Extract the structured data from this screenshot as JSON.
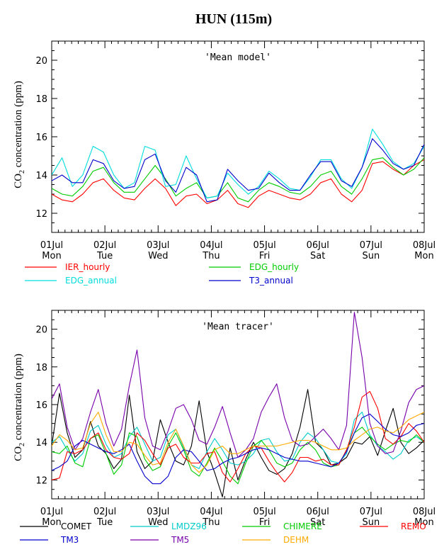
{
  "title": "HUN (115m)",
  "ylabel_prefix": "CO",
  "ylabel_sub": "2",
  "ylabel_suffix": " concentration (ppm)",
  "chart_data": [
    {
      "type": "line",
      "panel_title": "'Mean model'",
      "ylim": [
        11,
        21
      ],
      "yticks": [
        12,
        14,
        16,
        18,
        20
      ],
      "xlim": [
        0,
        168
      ],
      "x_units": "hours from 01 Jul 00:00",
      "xticks": [
        {
          "day": "01Jul",
          "wd": "Mon"
        },
        {
          "day": "02Jul",
          "wd": "Tue"
        },
        {
          "day": "03Jul",
          "wd": "Wed"
        },
        {
          "day": "04Jul",
          "wd": "Thu"
        },
        {
          "day": "05Jul",
          "wd": "Fri"
        },
        {
          "day": "06Jul",
          "wd": "Sat"
        },
        {
          "day": "07Jul",
          "wd": "Sun"
        },
        {
          "day": "08Jul",
          "wd": "Mon"
        }
      ],
      "series": [
        {
          "name": "IER_hourly",
          "color": "#ff0000",
          "values": [
            13.0,
            12.7,
            12.6,
            13.0,
            13.6,
            13.8,
            13.2,
            12.8,
            12.7,
            13.3,
            13.8,
            13.3,
            12.4,
            12.9,
            13.0,
            12.5,
            12.7,
            13.2,
            12.5,
            12.3,
            12.9,
            13.2,
            13.0,
            12.8,
            12.7,
            13.0,
            13.6,
            13.8,
            13.0,
            12.6,
            13.2,
            14.6,
            14.7,
            14.3,
            14.0,
            14.5,
            14.8
          ]
        },
        {
          "name": "EDG_hourly",
          "color": "#00cc00",
          "values": [
            13.3,
            13.0,
            12.9,
            13.4,
            14.2,
            14.4,
            13.6,
            13.1,
            13.1,
            13.8,
            14.5,
            13.8,
            12.9,
            13.3,
            13.6,
            12.8,
            12.9,
            13.6,
            12.8,
            12.6,
            13.2,
            13.6,
            13.4,
            13.1,
            13.0,
            13.4,
            14.0,
            14.2,
            13.4,
            13.0,
            13.8,
            14.8,
            14.9,
            14.4,
            14.0,
            14.3,
            14.9
          ]
        },
        {
          "name": "EDG_annual",
          "color": "#00dddd",
          "values": [
            14.0,
            14.9,
            13.4,
            14.0,
            15.5,
            15.2,
            14.0,
            13.3,
            13.6,
            15.5,
            15.3,
            13.4,
            13.5,
            15.0,
            13.8,
            12.8,
            12.9,
            14.1,
            13.5,
            13.0,
            13.4,
            14.2,
            13.8,
            13.3,
            13.2,
            13.9,
            14.8,
            14.8,
            13.8,
            13.3,
            14.4,
            16.4,
            15.6,
            14.7,
            14.3,
            14.6,
            15.5
          ]
        },
        {
          "name": "T3_annual",
          "color": "#0000cc",
          "values": [
            13.7,
            14.0,
            13.6,
            13.6,
            14.8,
            14.6,
            13.7,
            13.3,
            13.4,
            14.8,
            15.1,
            13.7,
            13.1,
            14.4,
            14.0,
            12.6,
            12.7,
            14.3,
            13.7,
            13.2,
            13.3,
            14.1,
            13.6,
            13.2,
            13.2,
            14.0,
            14.7,
            14.7,
            13.7,
            13.4,
            14.4,
            15.9,
            15.3,
            14.6,
            14.3,
            14.5,
            15.6
          ]
        }
      ]
    },
    {
      "type": "line",
      "panel_title": "'Mean tracer'",
      "ylim": [
        11,
        21
      ],
      "yticks": [
        12,
        14,
        16,
        18,
        20
      ],
      "xlim": [
        0,
        168
      ],
      "x_units": "hours from 01 Jul 00:00",
      "xticks": [
        {
          "day": "01Jul",
          "wd": "Mon"
        },
        {
          "day": "02Jul",
          "wd": "Tue"
        },
        {
          "day": "03Jul",
          "wd": "Wed"
        },
        {
          "day": "04Jul",
          "wd": "Thu"
        },
        {
          "day": "05Jul",
          "wd": "Fri"
        },
        {
          "day": "06Jul",
          "wd": "Sat"
        },
        {
          "day": "07Jul",
          "wd": "Sun"
        },
        {
          "day": "08Jul",
          "wd": "Mon"
        }
      ],
      "series": [
        {
          "name": "COMET",
          "color": "#000000",
          "values": [
            13.8,
            16.6,
            14.5,
            13.2,
            13.6,
            15.1,
            13.8,
            13.4,
            12.6,
            13.1,
            16.5,
            13.5,
            12.6,
            13.0,
            15.2,
            14.0,
            13.0,
            12.8,
            13.8,
            16.2,
            13.5,
            12.4,
            11.1,
            13.7,
            12.0,
            13.1,
            14.0,
            13.2,
            12.5,
            12.3,
            12.6,
            13.4,
            14.8,
            16.8,
            14.0,
            13.6,
            12.8,
            12.9,
            13.2,
            14.0,
            13.9,
            14.3,
            13.3,
            14.6,
            15.8,
            14.0,
            13.4,
            13.7,
            14.1
          ]
        },
        {
          "name": "LMDZ96",
          "color": "#00cccc",
          "values": [
            14.0,
            14.3,
            13.6,
            13.0,
            13.4,
            14.6,
            14.9,
            13.9,
            13.2,
            13.4,
            14.3,
            14.8,
            13.9,
            13.0,
            13.2,
            14.4,
            14.7,
            13.7,
            12.8,
            12.6,
            13.5,
            14.2,
            13.6,
            12.9,
            12.8,
            13.0,
            13.4,
            14.1,
            14.2,
            13.5,
            13.0,
            13.1,
            14.0,
            14.5,
            14.2,
            13.6,
            13.0,
            12.9,
            13.4,
            15.2,
            15.6,
            14.4,
            13.8,
            13.5,
            13.1,
            13.4,
            14.1,
            14.3,
            14.0
          ]
        },
        {
          "name": "CHIMERE",
          "color": "#00cc00",
          "values": [
            13.5,
            13.4,
            13.8,
            12.9,
            12.7,
            14.2,
            14.4,
            13.4,
            12.3,
            12.8,
            14.5,
            14.3,
            13.1,
            12.5,
            12.7,
            13.8,
            14.5,
            13.6,
            12.5,
            12.2,
            12.9,
            13.7,
            13.0,
            12.2,
            11.8,
            12.9,
            13.8,
            14.1,
            13.6,
            12.9,
            12.7,
            12.9,
            13.6,
            14.0,
            13.6,
            12.9,
            12.7,
            12.8,
            13.6,
            14.5,
            14.8,
            14.3,
            13.9,
            13.6,
            13.9,
            14.1,
            14.0,
            14.4,
            14.0
          ]
        },
        {
          "name": "REMO",
          "color": "#ff0000",
          "values": [
            12.0,
            12.1,
            13.5,
            13.4,
            13.6,
            14.2,
            14.5,
            13.6,
            13.2,
            13.1,
            13.4,
            14.5,
            14.1,
            13.4,
            12.8,
            13.7,
            13.9,
            13.2,
            12.9,
            12.9,
            13.4,
            13.5,
            12.4,
            11.9,
            12.6,
            13.4,
            13.8,
            13.7,
            13.0,
            12.4,
            11.9,
            12.4,
            13.2,
            13.2,
            13.0,
            13.1,
            12.8,
            12.8,
            13.6,
            14.8,
            16.4,
            16.7,
            15.8,
            14.2,
            13.9,
            14.3,
            15.0,
            14.6,
            14.0
          ]
        },
        {
          "name": "TM3",
          "color": "#0000cc",
          "values": [
            12.5,
            12.7,
            13.0,
            13.8,
            14.1,
            13.9,
            13.7,
            13.5,
            13.4,
            13.6,
            13.9,
            13.0,
            12.2,
            11.8,
            11.8,
            12.2,
            13.2,
            13.6,
            13.5,
            13.0,
            12.5,
            12.6,
            12.9,
            13.1,
            13.2,
            13.4,
            13.6,
            13.7,
            13.6,
            13.4,
            13.2,
            13.1,
            13.0,
            13.0,
            12.9,
            12.8,
            12.7,
            12.9,
            13.5,
            14.5,
            15.3,
            15.5,
            15.1,
            14.7,
            14.4,
            14.3,
            14.5,
            14.9,
            15.0
          ]
        },
        {
          "name": "TM5",
          "color": "#7700aa",
          "values": [
            16.3,
            17.1,
            14.8,
            13.6,
            14.2,
            15.6,
            16.8,
            15.0,
            13.8,
            14.7,
            17.0,
            18.9,
            15.3,
            13.8,
            13.6,
            14.6,
            15.8,
            16.0,
            15.2,
            14.1,
            13.9,
            14.8,
            15.9,
            14.5,
            13.2,
            13.6,
            14.2,
            15.6,
            16.4,
            17.1,
            15.3,
            14.1,
            13.8,
            13.9,
            14.3,
            14.7,
            14.2,
            13.6,
            14.9,
            20.9,
            18.5,
            15.0,
            13.8,
            13.4,
            13.5,
            14.6,
            16.1,
            16.8,
            17.0
          ]
        },
        {
          "name": "DEHM",
          "color": "#ffaa00",
          "values": [
            13.8,
            14.4,
            14.1,
            13.6,
            13.7,
            15.0,
            15.6,
            14.4,
            13.5,
            13.5,
            14.0,
            13.9,
            13.3,
            12.8,
            12.9,
            14.0,
            14.7,
            13.8,
            12.8,
            12.4,
            12.8,
            13.6,
            13.8,
            13.4,
            13.4,
            13.6,
            13.8,
            13.8,
            13.8,
            13.8,
            13.9,
            14.0,
            14.1,
            14.1,
            14.0,
            13.8,
            13.6,
            13.6,
            13.7,
            14.1,
            14.4,
            14.7,
            14.8,
            14.6,
            14.5,
            14.8,
            15.2,
            15.4,
            15.6
          ]
        }
      ]
    }
  ]
}
